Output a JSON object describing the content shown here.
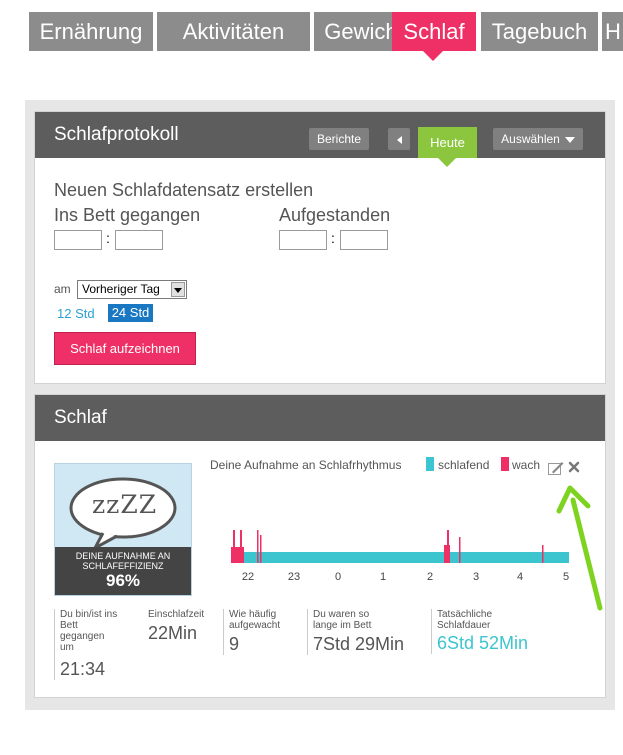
{
  "nav": {
    "tabs": [
      {
        "label": "Ernährung"
      },
      {
        "label": "Aktivitäten"
      },
      {
        "label": "Gewicht"
      },
      {
        "label": "Schlaf"
      },
      {
        "label": "Tagebuch"
      },
      {
        "label": "H"
      }
    ],
    "active_tab": "Schlaf"
  },
  "protokoll": {
    "title": "Schlafprotokoll",
    "berichte_label": "Berichte",
    "heute_label": "Heute",
    "auswaehlen_label": "Auswählen",
    "new_entry_title": "Neuen Schlafdatensatz erstellen",
    "bed_label": "Ins Bett gegangen",
    "up_label": "Aufgestanden",
    "time_sep": ":",
    "am_label": "am",
    "day_select_value": "Vorheriger Tag",
    "format_12": "12 Std",
    "format_24": "24 Std",
    "record_button": "Schlaf aufzeichnen"
  },
  "schlaf": {
    "title": "Schlaf",
    "efficiency_caption_1": "DEINE AUFNAHME AN",
    "efficiency_caption_2": "SCHLAFEFFIZIENZ",
    "efficiency_value": "96%",
    "bubble_text": "zzZZ",
    "rhythm_label": "Deine Aufnahme an Schlafrhythmus",
    "legend_asleep": "schlafend",
    "legend_awake": "wach",
    "colors": {
      "asleep": "#3cc5cf",
      "awake": "#ee3066",
      "accent": "#8cc63f"
    },
    "hour_labels": [
      "22",
      "23",
      "0",
      "1",
      "2",
      "3",
      "4",
      "5"
    ],
    "stats": [
      {
        "label": "Du bin/ist ins Bett gegangen um",
        "value": "21:34"
      },
      {
        "label": "Einschlafzeit",
        "value": "22Min"
      },
      {
        "label": "Wie häufig aufgewacht",
        "value": "9"
      },
      {
        "label": "Du waren so lange im Bett",
        "value": "7Std 29Min"
      },
      {
        "label": "Tatsächliche Schlafdauer",
        "value": "6Std 52Min"
      }
    ]
  }
}
